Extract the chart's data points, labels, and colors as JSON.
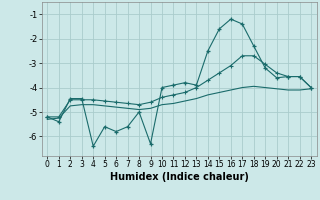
{
  "xlabel": "Humidex (Indice chaleur)",
  "bg_color": "#cce8e8",
  "grid_color": "#aacccc",
  "line_color": "#1a6b6b",
  "xlim": [
    -0.5,
    23.5
  ],
  "ylim": [
    -6.8,
    -0.5
  ],
  "yticks": [
    -6,
    -5,
    -4,
    -3,
    -2,
    -1
  ],
  "xticks": [
    0,
    1,
    2,
    3,
    4,
    5,
    6,
    7,
    8,
    9,
    10,
    11,
    12,
    13,
    14,
    15,
    16,
    17,
    18,
    19,
    20,
    21,
    22,
    23
  ],
  "series1_x": [
    0,
    1,
    2,
    3,
    4,
    5,
    6,
    7,
    8,
    9,
    10,
    11,
    12,
    13,
    14,
    15,
    16,
    17,
    18,
    19,
    20,
    21,
    22,
    23
  ],
  "series1_y": [
    -5.2,
    -5.4,
    -4.45,
    -4.45,
    -6.4,
    -5.6,
    -5.8,
    -5.6,
    -5.0,
    -6.3,
    -4.0,
    -3.9,
    -3.8,
    -3.9,
    -2.5,
    -1.6,
    -1.2,
    -1.4,
    -2.3,
    -3.2,
    -3.6,
    -3.55,
    -3.55,
    -4.0
  ],
  "series2_x": [
    0,
    1,
    2,
    3,
    4,
    5,
    6,
    7,
    8,
    9,
    10,
    11,
    12,
    13,
    14,
    15,
    16,
    17,
    18,
    19,
    20,
    21,
    22,
    23
  ],
  "series2_y": [
    -5.2,
    -5.2,
    -4.5,
    -4.5,
    -4.5,
    -4.55,
    -4.6,
    -4.65,
    -4.7,
    -4.6,
    -4.4,
    -4.3,
    -4.2,
    -4.0,
    -3.7,
    -3.4,
    -3.1,
    -2.7,
    -2.7,
    -3.05,
    -3.4,
    -3.55,
    -3.55,
    -4.0
  ],
  "series3_x": [
    0,
    1,
    2,
    3,
    4,
    5,
    6,
    7,
    8,
    9,
    10,
    11,
    12,
    13,
    14,
    15,
    16,
    17,
    18,
    19,
    20,
    21,
    22,
    23
  ],
  "series3_y": [
    -5.3,
    -5.25,
    -4.75,
    -4.7,
    -4.7,
    -4.75,
    -4.8,
    -4.85,
    -4.9,
    -4.85,
    -4.7,
    -4.65,
    -4.55,
    -4.45,
    -4.3,
    -4.2,
    -4.1,
    -4.0,
    -3.95,
    -4.0,
    -4.05,
    -4.1,
    -4.1,
    -4.05
  ]
}
